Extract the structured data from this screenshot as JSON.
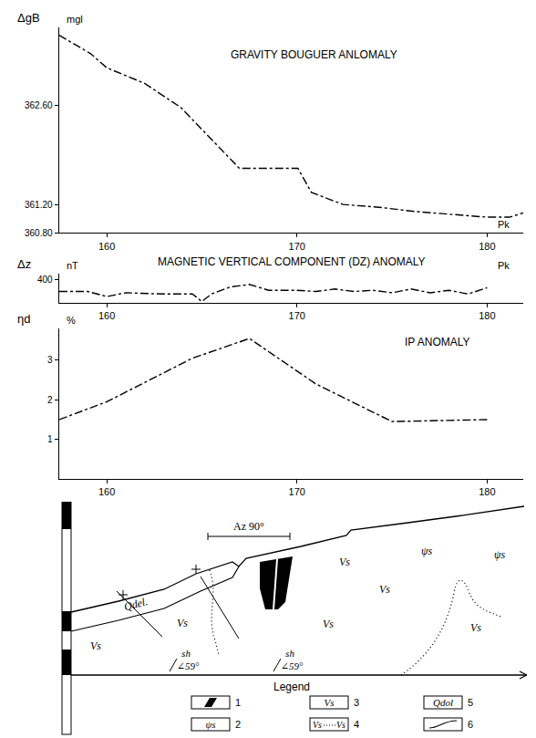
{
  "chart_data": [
    {
      "type": "line",
      "title": "GRAVITY BOUGUER ANLOMALY",
      "y_label": "ΔgB",
      "y_unit": "mgl",
      "x_label": "Pk",
      "x": [
        157.49,
        159.15,
        160,
        161.99,
        163.89,
        165.78,
        166.97,
        170.05,
        170.76,
        172.42,
        174.31,
        176.21,
        178.1,
        180,
        181.18,
        181.9
      ],
      "values": [
        363.59,
        363.33,
        363.13,
        362.91,
        362.57,
        362.05,
        361.71,
        361.71,
        361.37,
        361.2,
        361.16,
        361.1,
        361.06,
        361.02,
        361.02,
        361.08
      ],
      "color": "#000000",
      "line_style": "dashdot",
      "xlim": [
        157.5,
        181.9
      ],
      "xticks": [
        160,
        170,
        180
      ],
      "ylim": [
        360.8,
        363.7
      ],
      "yticks": [
        {
          "value": 362.6,
          "label": "362.60"
        },
        {
          "value": 361.2,
          "label": "361.20"
        },
        {
          "value": 360.8,
          "label": "360.80"
        }
      ],
      "grid": false
    },
    {
      "type": "line",
      "title": "MAGNETIC VERTICAL COMPONENT (DZ) ANOMALY",
      "y_label": "Δz",
      "y_unit": "nT",
      "x_label": "Pk",
      "x": [
        157.5,
        159,
        160,
        161,
        163,
        164.5,
        165,
        165.5,
        166.5,
        167.5,
        168.5,
        170,
        171,
        172,
        173,
        174,
        175,
        176,
        177,
        178,
        179,
        180
      ],
      "values": [
        120,
        120,
        0,
        90,
        60,
        60,
        -120,
        60,
        230,
        290,
        150,
        150,
        120,
        180,
        120,
        150,
        90,
        180,
        90,
        150,
        60,
        210
      ],
      "color": "#000000",
      "line_style": "dashdot",
      "xlim": [
        157.5,
        181.9
      ],
      "xticks": [
        160,
        170,
        180
      ],
      "ylim": [
        -150,
        550
      ],
      "yticks": [
        400
      ],
      "grid": false
    },
    {
      "type": "line",
      "title": "IP ANOMALY",
      "y_label": "ηd",
      "y_unit": "%",
      "x": [
        157.5,
        160,
        164.5,
        167.5,
        171,
        175,
        180
      ],
      "values": [
        1.5,
        1.95,
        3.05,
        3.55,
        2.4,
        1.45,
        1.5
      ],
      "color": "#000000",
      "line_style": "dashdot",
      "xlim": [
        157.5,
        181.9
      ],
      "xticks": [
        160,
        170,
        180
      ],
      "ylim": [
        0,
        3.8
      ],
      "yticks": [
        1,
        2,
        3
      ],
      "grid": false
    }
  ],
  "section": {
    "scale_label": "Az 90°",
    "labels": [
      "Qdel.",
      "Vs",
      "Vs",
      "Vs",
      "Vs",
      "Vs",
      "Vs",
      "ψs",
      "ψs",
      "sh",
      "∠59°",
      "sh",
      "∠59°"
    ],
    "legend_title": "Legend",
    "legend": [
      {
        "number": 1
      },
      {
        "number": 2,
        "symbol": "ψs"
      },
      {
        "number": 3,
        "symbol": "Vs"
      },
      {
        "number": 4,
        "symbol": "Vs",
        "symbol_end": "Vs"
      },
      {
        "number": 5,
        "symbol": "Qdol"
      },
      {
        "number": 6
      }
    ]
  }
}
